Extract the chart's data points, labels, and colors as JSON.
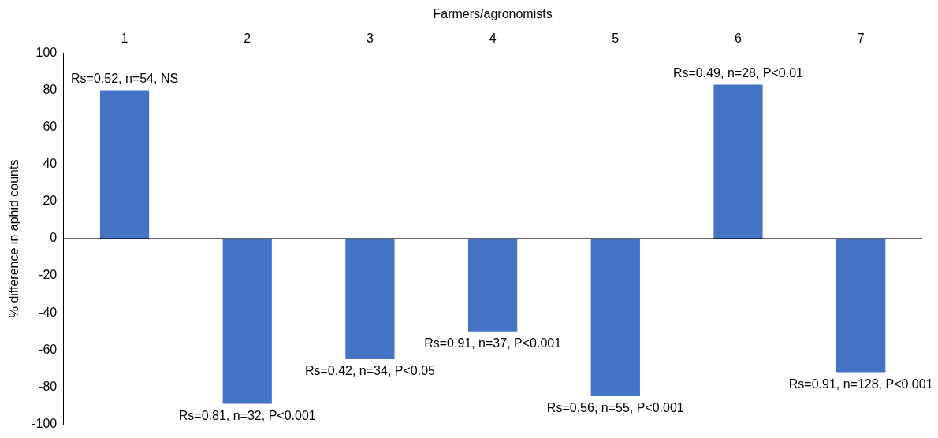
{
  "chart_data": {
    "type": "bar",
    "xlabel": "Farmers/agronomists",
    "ylabel": "% difference in aphid counts",
    "categories": [
      "1",
      "2",
      "3",
      "4",
      "5",
      "6",
      "7"
    ],
    "values": [
      80,
      -89,
      -65,
      -50,
      -85,
      83,
      -72
    ],
    "color": "#4472c4",
    "ylim": [
      -100,
      100
    ],
    "yticks": [
      -100,
      -80,
      -60,
      -40,
      -20,
      0,
      20,
      40,
      60,
      80,
      100
    ],
    "grid": false,
    "legend": false,
    "ref_lines": [
      {
        "axis": "y",
        "value": 0,
        "color": "#000000"
      }
    ],
    "annotations": [
      {
        "text": "Rs=0.52, n=54, NS",
        "x": "1",
        "y": 80
      },
      {
        "text": "Rs=0.81, n=32, P<0.001",
        "x": "2",
        "y": -89
      },
      {
        "text": "Rs=0.42, n=34, P<0.05",
        "x": "3",
        "y": -65
      },
      {
        "text": "Rs=0.91, n=37, P<0.001",
        "x": "4",
        "y": -50
      },
      {
        "text": "Rs=0.56, n=55, P<0.001",
        "x": "5",
        "y": -85
      },
      {
        "text": "Rs=0.49, n=28, P<0.01",
        "x": "6",
        "y": 83
      },
      {
        "text": "Rs=0.91, n=128, P<0.001",
        "x": "7",
        "y": -72
      }
    ]
  }
}
